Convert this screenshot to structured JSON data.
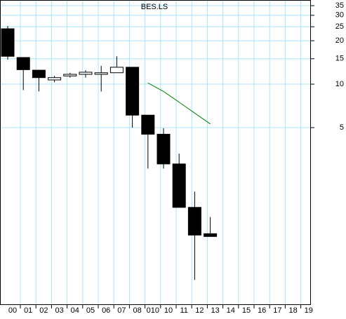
{
  "chart_data": {
    "type": "candlestick",
    "title": "BES.LS",
    "categories": [
      "00",
      "01",
      "02",
      "03",
      "04",
      "05",
      "06",
      "07",
      "08",
      "010",
      "10",
      "11",
      "12",
      "13",
      "14",
      "15",
      "16",
      "17",
      "18",
      "19"
    ],
    "open": [
      24.2,
      15.3,
      12.5,
      10.7,
      11.4,
      11.7,
      11.7,
      12.0,
      13.1,
      6.1,
      4.5,
      2.8,
      1.4,
      0.92,
      null,
      null,
      null,
      null,
      null,
      null
    ],
    "high": [
      25.3,
      15.3,
      12.5,
      11.4,
      12.0,
      12.5,
      13.4,
      15.6,
      13.1,
      6.1,
      4.95,
      3.3,
      1.8,
      1.2,
      null,
      null,
      null,
      null,
      null,
      null
    ],
    "low": [
      14.8,
      9.1,
      8.9,
      10.3,
      11.1,
      11.1,
      8.9,
      12.0,
      5.0,
      2.6,
      2.6,
      1.4,
      0.44,
      0.88,
      null,
      null,
      null,
      null,
      null,
      null
    ],
    "close": [
      15.6,
      12.6,
      11.1,
      11.1,
      11.7,
      12.1,
      12.0,
      13.1,
      6.1,
      4.5,
      2.8,
      1.4,
      0.9,
      0.88,
      null,
      null,
      null,
      null,
      null,
      null
    ],
    "up_color": "#ffffff",
    "down_color": "#000000",
    "series": [
      {
        "type": "line",
        "color": "#008000",
        "values": [
          null,
          null,
          null,
          null,
          null,
          null,
          null,
          null,
          null,
          10.2,
          8.9,
          7.5,
          6.3,
          5.3,
          null,
          null,
          null,
          null,
          null,
          null
        ]
      }
    ],
    "ylim": [
      0.295,
      38.3
    ],
    "log_scale": true,
    "grid": true,
    "yticks": [
      5,
      10,
      15,
      20,
      25,
      30,
      35
    ]
  }
}
